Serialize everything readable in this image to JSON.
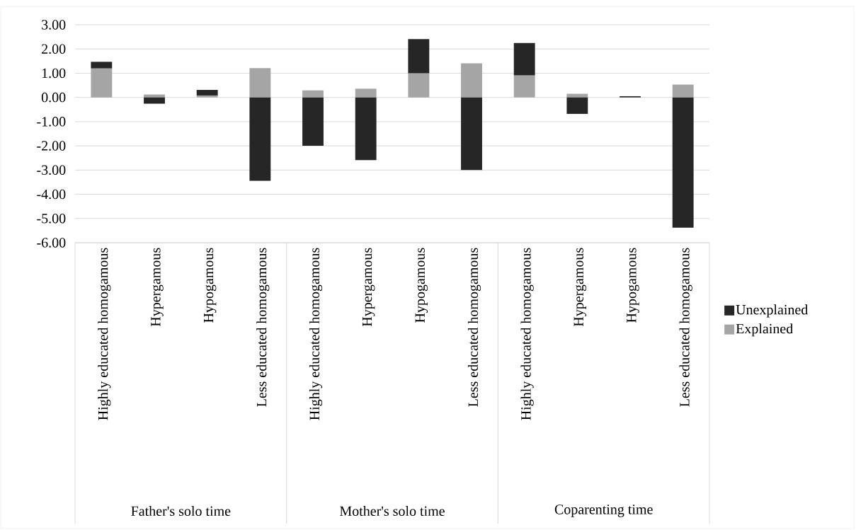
{
  "chart_data": {
    "type": "bar",
    "stacked": true,
    "categories": [
      "Highly educated homogamous",
      "Hypergamous",
      "Hypogamous",
      "Less educated homogamous",
      "Highly educated homogamous",
      "Hypergamous",
      "Hypogamous",
      "Less educated homogamous",
      "Highly educated homogamous",
      "Hypergamous",
      "Hypogamous",
      "Less educated homogamous"
    ],
    "series": [
      {
        "name": "Explained",
        "color": "#a5a5a5",
        "values": [
          1.2,
          0.12,
          0.08,
          1.21,
          0.29,
          0.36,
          1.0,
          1.41,
          0.91,
          0.15,
          null,
          0.53
        ]
      },
      {
        "name": "Unexplained",
        "color": "#262626",
        "values": [
          0.27,
          -0.26,
          0.23,
          -3.44,
          -2.0,
          -2.59,
          1.41,
          -3.0,
          1.34,
          -0.68,
          0.05,
          -5.38
        ]
      }
    ],
    "annotations": [
      "Father's solo time",
      "Mother's solo time",
      "Coparenting time"
    ],
    "ylim": [
      -6,
      3
    ],
    "yticks": [
      {
        "value": -6,
        "label": "-6.00"
      },
      {
        "value": -5,
        "label": "-5.00"
      },
      {
        "value": -4,
        "label": "-4.00"
      },
      {
        "value": -3,
        "label": "-3.00"
      },
      {
        "value": -2,
        "label": "-2.00"
      },
      {
        "value": -1,
        "label": "-1.00"
      },
      {
        "value": 0,
        "label": "0.00"
      },
      {
        "value": 1,
        "label": "1.00"
      },
      {
        "value": 2,
        "label": "2.00"
      },
      {
        "value": 3,
        "label": "3.00"
      }
    ],
    "grid": "y",
    "legend": "right"
  }
}
